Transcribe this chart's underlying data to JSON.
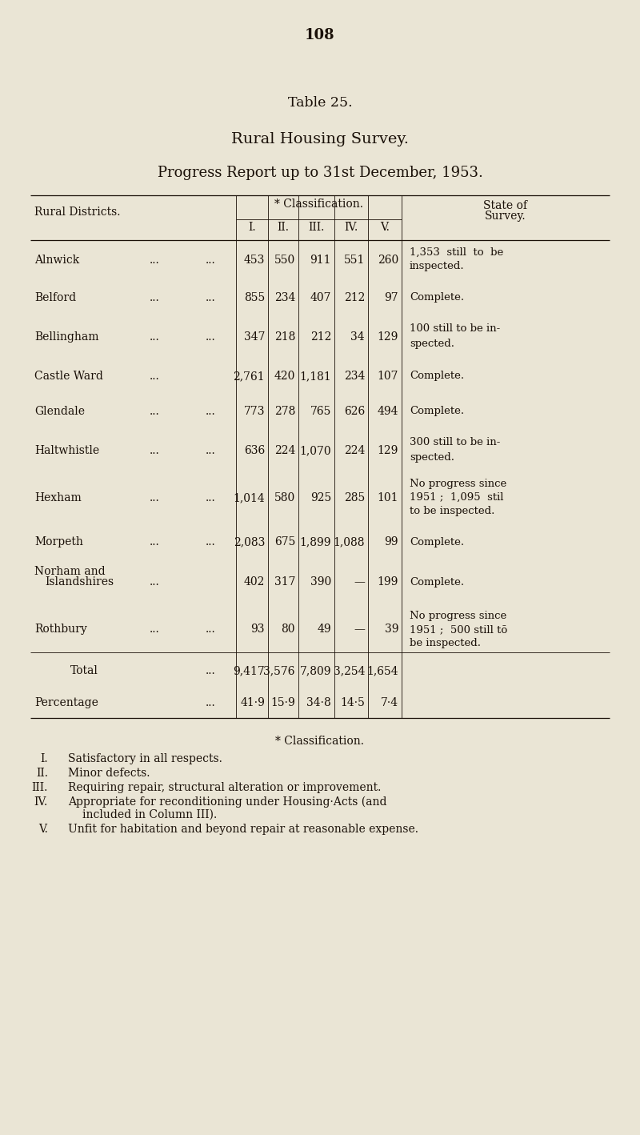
{
  "page_number": "108",
  "title1": "Table 25.",
  "title2": "Rural Housing Survey.",
  "title3": "Progress Report up to 31st December, 1953.",
  "bg_color": "#EAE5D5",
  "text_color": "#1a1008",
  "col_header_main": "* Classification.",
  "col_header_right": "State of\nSurvey.",
  "col_header_row": [
    "I.",
    "II.",
    "III.",
    "IV.",
    "V."
  ],
  "row_label_left": "Rural Districts.",
  "rows": [
    {
      "district": "Alnwick",
      "d1": "...",
      "d2": "...",
      "I": "453",
      "II": "550",
      "III": "911",
      "IV": "551",
      "V": "260",
      "state": [
        "1,353  still  to  be",
        "inspected."
      ]
    },
    {
      "district": "Belford",
      "d1": "...",
      "d2": "...",
      "I": "855",
      "II": "234",
      "III": "407",
      "IV": "212",
      "V": "97",
      "state": [
        "Complete."
      ]
    },
    {
      "district": "Bellingham",
      "d1": "...",
      "d2": "...",
      "I": "347",
      "II": "218",
      "III": "212",
      "IV": "34",
      "V": "129",
      "state": [
        "100 still to be in-",
        "spected."
      ]
    },
    {
      "district": "Castle Ward",
      "d1": "...",
      "d2": "",
      "I": "2,761",
      "II": "420",
      "III": "1,181",
      "IV": "234",
      "V": "107",
      "state": [
        "Complete."
      ]
    },
    {
      "district": "Glendale",
      "d1": "...",
      "d2": "...",
      "I": "773",
      "II": "278",
      "III": "765",
      "IV": "626",
      "V": "494",
      "state": [
        "Complete."
      ]
    },
    {
      "district": "Haltwhistle",
      "d1": "...",
      "d2": "...",
      "I": "636",
      "II": "224",
      "III": "1,070",
      "IV": "224",
      "V": "129",
      "state": [
        "300 still to be in-",
        "spected."
      ]
    },
    {
      "district": "Hexham",
      "d1": "...",
      "d2": "...",
      "I": "1,014",
      "II": "580",
      "III": "925",
      "IV": "285",
      "V": "101",
      "state": [
        "No progress since",
        "1951 ;  1,095  stil",
        "to be inspected."
      ]
    },
    {
      "district": "Morpeth",
      "d1": "...",
      "d2": "...",
      "I": "2,083",
      "II": "675",
      "III": "1,899",
      "IV": "1,088",
      "V": "99",
      "state": [
        "Complete."
      ]
    },
    {
      "district_lines": [
        "Norham and",
        "Islandshires"
      ],
      "d1": "...",
      "d2": "",
      "I": "402",
      "II": "317",
      "III": "390",
      "IV": "—",
      "V": "199",
      "state": [
        "Complete."
      ]
    },
    {
      "district": "Rothbury",
      "d1": "...",
      "d2": "...",
      "I": "93",
      "II": "80",
      "III": "49",
      "IV": "—",
      "V": "39",
      "state": [
        "No progress since",
        "1951 ;  500 still tō",
        "be inspected."
      ]
    }
  ],
  "total_label": "Total",
  "total_dots": "...",
  "total_I": "9,417",
  "total_II": "3,576",
  "total_III": "7,809",
  "total_IV": "3,254",
  "total_V": "1,654",
  "pct_label": "Percentage",
  "pct_dots": "...",
  "pct_I": "41·9",
  "pct_II": "15·9",
  "pct_III": "34·8",
  "pct_IV": "14·5",
  "pct_V": "7·4",
  "fn_header": "* Classification.",
  "fn_items": [
    {
      "num": "I.",
      "text": "Satisfactory in all respects."
    },
    {
      "num": "II.",
      "text": "Minor defects."
    },
    {
      "num": "III.",
      "text": "Requiring repair, structural alteration or improvement."
    },
    {
      "num": "IV.",
      "text": "Appropriate for reconditioning under Housing·Acts (and",
      "text2": "included in Column III)."
    },
    {
      "num": "V.",
      "text": "Unfit for habitation and beyond repair at reasonable expense."
    }
  ]
}
